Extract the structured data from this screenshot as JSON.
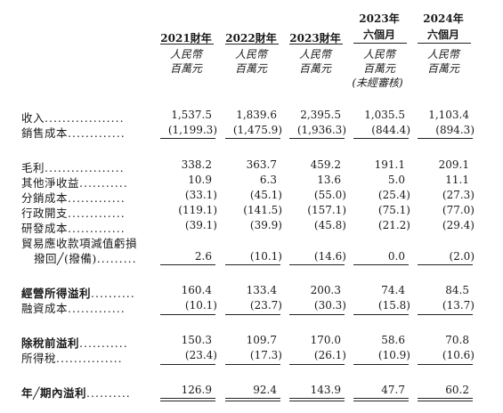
{
  "columns": [
    {
      "year": "2021財年",
      "line2": "",
      "unit1": "人民幣",
      "unit2": "百萬元",
      "note": ""
    },
    {
      "year": "2022財年",
      "line2": "",
      "unit1": "人民幣",
      "unit2": "百萬元",
      "note": ""
    },
    {
      "year": "2023財年",
      "line2": "",
      "unit1": "人民幣",
      "unit2": "百萬元",
      "note": ""
    },
    {
      "year": "2023年",
      "line2": "六個月",
      "unit1": "人民幣",
      "unit2": "百萬元",
      "note": "(未經審核)"
    },
    {
      "year": "2024年",
      "line2": "六個月",
      "unit1": "人民幣",
      "unit2": "百萬元",
      "note": ""
    }
  ],
  "rows": [
    {
      "label": "收入",
      "dots": "..................",
      "values": [
        "1,537.5",
        "1,839.6",
        "2,395.5",
        "1,035.5",
        "1,103.4"
      ]
    },
    {
      "label": "銷售成本",
      "dots": ".............",
      "values": [
        "(1,199.3)",
        "(1,475.9)",
        "(1,936.3)",
        "(844.4)",
        "(894.3)"
      ]
    },
    {
      "label": "毛利",
      "dots": "..................",
      "values": [
        "338.2",
        "363.7",
        "459.2",
        "191.1",
        "209.1"
      ]
    },
    {
      "label": "其他淨收益",
      "dots": "...........",
      "values": [
        "10.9",
        "6.3",
        "13.6",
        "5.0",
        "11.1"
      ]
    },
    {
      "label": "分銷成本",
      "dots": ".............",
      "values": [
        "(33.1)",
        "(45.1)",
        "(55.0)",
        "(25.4)",
        "(27.3)"
      ]
    },
    {
      "label": "行政開支",
      "dots": ".............",
      "values": [
        "(119.1)",
        "(141.5)",
        "(157.1)",
        "(75.1)",
        "(77.0)"
      ]
    },
    {
      "label": "研發成本",
      "dots": ".............",
      "values": [
        "(39.1)",
        "(39.9)",
        "(45.8)",
        "(21.2)",
        "(29.4)"
      ]
    },
    {
      "label": "貿易應收款項減值虧損",
      "dots": "",
      "values": [
        "",
        "",
        "",
        "",
        ""
      ]
    },
    {
      "label": "撥回╱(撥備)",
      "dots": ".........",
      "values": [
        "2.6",
        "(10.1)",
        "(14.6)",
        "0.0",
        "(2.0)"
      ]
    },
    {
      "label": "經營所得溢利",
      "dots": "..........",
      "values": [
        "160.4",
        "133.4",
        "200.3",
        "74.4",
        "84.5"
      ]
    },
    {
      "label": "融資成本",
      "dots": ".............",
      "values": [
        "(10.1)",
        "(23.7)",
        "(30.3)",
        "(15.8)",
        "(13.7)"
      ]
    },
    {
      "label": "除稅前溢利",
      "dots": "...........",
      "values": [
        "150.3",
        "109.7",
        "170.0",
        "58.6",
        "70.8"
      ]
    },
    {
      "label": "所得稅",
      "dots": "...............",
      "values": [
        "(23.4)",
        "(17.3)",
        "(26.1)",
        "(10.9)",
        "(10.6)"
      ]
    },
    {
      "label": "年╱期內溢利",
      "dots": "..........",
      "values": [
        "126.9",
        "92.4",
        "143.9",
        "47.7",
        "60.2"
      ]
    }
  ]
}
